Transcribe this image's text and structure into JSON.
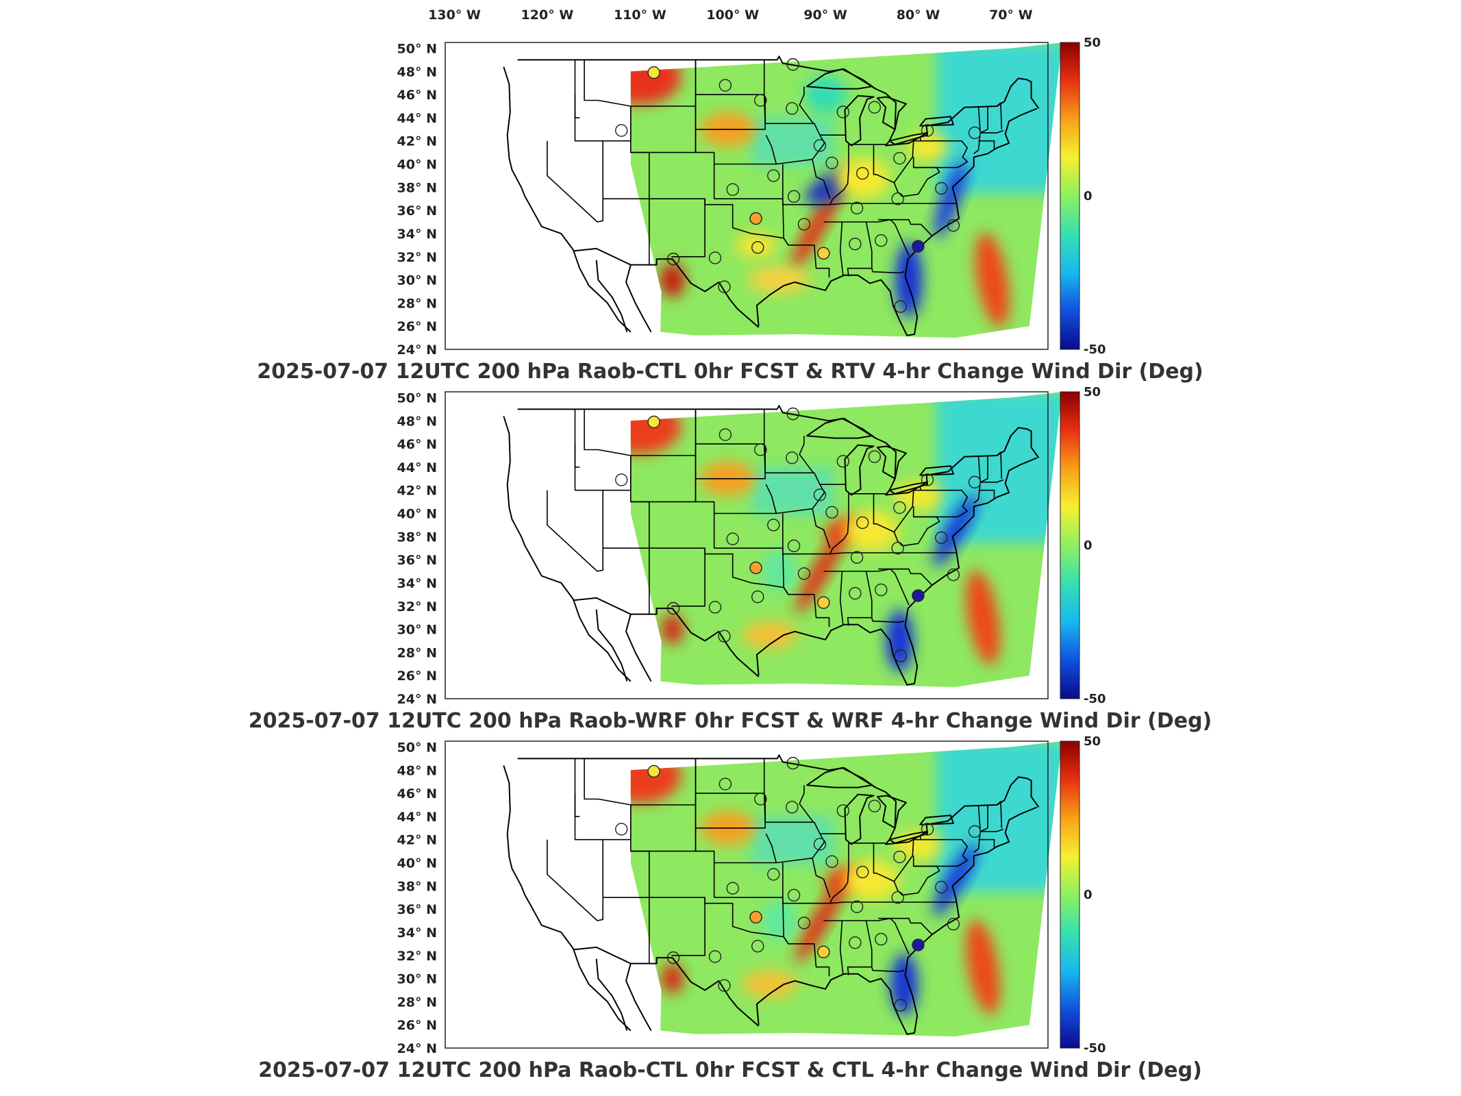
{
  "lon_labels": [
    "130° W",
    "120° W",
    "110° W",
    "100° W",
    "90° W",
    "80° W",
    "70° W"
  ],
  "lat_labels": [
    "50° N",
    "48° N",
    "46° N",
    "44° N",
    "42° N",
    "40° N",
    "38° N",
    "36° N",
    "34° N",
    "32° N",
    "30° N",
    "28° N",
    "26° N",
    "24° N"
  ],
  "colorbar": {
    "max_label": "50",
    "mid_label": "0",
    "min_label": "-50",
    "colors": [
      "#0a0a8c",
      "#1050e0",
      "#18b8f0",
      "#36e0b0",
      "#8ef060",
      "#f6f030",
      "#f8a018",
      "#e83010",
      "#8c0000"
    ]
  },
  "panels": [
    {
      "title": "2025-07-07 12UTC 200 hPa Raob-CTL 0hr FCST & RTV 4-hr Change Wind Dir (Deg)"
    },
    {
      "title": "2025-07-07 12UTC 200 hPa Raob-WRF 0hr FCST & WRF 4-hr Change Wind Dir (Deg)"
    },
    {
      "title": "2025-07-07 12UTC 200 hPa Raob-CTL 0hr FCST & CTL 4-hr Change Wind Dir (Deg)"
    }
  ],
  "stations": [
    {
      "lon": -108.5,
      "lat": 47.9,
      "fill": "#f6e63a"
    },
    {
      "lon": -100.8,
      "lat": 46.8,
      "fill": "none"
    },
    {
      "lon": -97.0,
      "lat": 45.5,
      "fill": "none"
    },
    {
      "lon": -93.5,
      "lat": 48.6,
      "fill": "none"
    },
    {
      "lon": -93.6,
      "lat": 44.8,
      "fill": "none"
    },
    {
      "lon": -88.1,
      "lat": 44.5,
      "fill": "none"
    },
    {
      "lon": -84.7,
      "lat": 44.9,
      "fill": "none"
    },
    {
      "lon": -112.0,
      "lat": 42.9,
      "fill": "none"
    },
    {
      "lon": -90.6,
      "lat": 41.6,
      "fill": "none"
    },
    {
      "lon": -89.3,
      "lat": 40.1,
      "fill": "none"
    },
    {
      "lon": -86.0,
      "lat": 39.2,
      "fill": "none"
    },
    {
      "lon": -82.0,
      "lat": 40.5,
      "fill": "none"
    },
    {
      "lon": -79.0,
      "lat": 42.9,
      "fill": "none"
    },
    {
      "lon": -73.9,
      "lat": 42.7,
      "fill": "none"
    },
    {
      "lon": -95.6,
      "lat": 39.0,
      "fill": "none"
    },
    {
      "lon": -100.0,
      "lat": 37.8,
      "fill": "none"
    },
    {
      "lon": -93.4,
      "lat": 37.2,
      "fill": "none"
    },
    {
      "lon": -86.6,
      "lat": 36.2,
      "fill": "none"
    },
    {
      "lon": -82.2,
      "lat": 37.0,
      "fill": "none"
    },
    {
      "lon": -77.5,
      "lat": 37.9,
      "fill": "none"
    },
    {
      "lon": -97.5,
      "lat": 35.3,
      "fill": "#f6a02c"
    },
    {
      "lon": -92.3,
      "lat": 34.8,
      "fill": "none"
    },
    {
      "lon": -97.3,
      "lat": 32.8,
      "fill": "none"
    },
    {
      "lon": -106.4,
      "lat": 31.8,
      "fill": "none"
    },
    {
      "lon": -101.9,
      "lat": 31.9,
      "fill": "none"
    },
    {
      "lon": -90.2,
      "lat": 32.3,
      "fill": "#f6d03c"
    },
    {
      "lon": -86.8,
      "lat": 33.1,
      "fill": "none"
    },
    {
      "lon": -84.0,
      "lat": 33.4,
      "fill": "none"
    },
    {
      "lon": -80.0,
      "lat": 32.9,
      "fill": "#1a1aa8"
    },
    {
      "lon": -76.2,
      "lat": 34.7,
      "fill": "none"
    },
    {
      "lon": -100.9,
      "lat": 29.4,
      "fill": "none"
    },
    {
      "lon": -81.9,
      "lat": 27.7,
      "fill": "none"
    }
  ]
}
